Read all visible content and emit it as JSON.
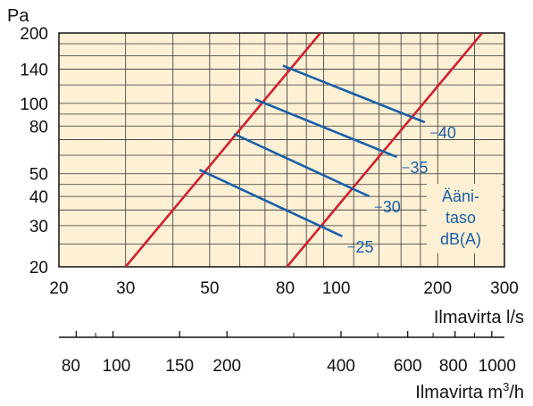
{
  "chart_data": {
    "type": "line",
    "y_unit": "Pa",
    "x_title": "Ilmavirta l/s",
    "x2_title_main": "Ilmavirta m",
    "x2_title_sup": "3",
    "x2_title_end": "/h",
    "x_scale": "log",
    "y_scale": "log",
    "xlim": [
      20,
      300
    ],
    "ylim": [
      20,
      200
    ],
    "x2lim": [
      72,
      1080
    ],
    "grid": true,
    "background": "#fdf0d5",
    "x_ticks": [
      {
        "v": 20,
        "label": "20"
      },
      {
        "v": 30,
        "label": "30"
      },
      {
        "v": 50,
        "label": "50"
      },
      {
        "v": 80,
        "label": "80"
      },
      {
        "v": 100,
        "label": "100"
      },
      {
        "v": 200,
        "label": "200"
      },
      {
        "v": 300,
        "label": "300"
      }
    ],
    "y_ticks": [
      {
        "v": 20,
        "label": "20"
      },
      {
        "v": 30,
        "label": "30"
      },
      {
        "v": 40,
        "label": "40"
      },
      {
        "v": 50,
        "label": "50"
      },
      {
        "v": 80,
        "label": "80"
      },
      {
        "v": 100,
        "label": "100"
      },
      {
        "v": 140,
        "label": "140"
      },
      {
        "v": 200,
        "label": "200"
      }
    ],
    "x2_ticks": [
      {
        "v": 80,
        "label": "80"
      },
      {
        "v": 100,
        "label": "100"
      },
      {
        "v": 150,
        "label": "150"
      },
      {
        "v": 200,
        "label": "200"
      },
      {
        "v": 400,
        "label": "400"
      },
      {
        "v": 600,
        "label": "600"
      },
      {
        "v": 800,
        "label": "800"
      },
      {
        "v": 1000,
        "label": "1000"
      }
    ],
    "x2_minor": [
      90,
      300,
      500,
      700,
      900
    ],
    "limit_lines": [
      {
        "color": "#d0202e",
        "points": [
          [
            30,
            20
          ],
          [
            98,
            200
          ]
        ]
      },
      {
        "color": "#d0202e",
        "points": [
          [
            80,
            20
          ],
          [
            262,
            200
          ]
        ]
      }
    ],
    "sound_lines": [
      {
        "label": "25",
        "color": "#1a5fa8",
        "points": [
          [
            47,
            52
          ],
          [
            112,
            27
          ]
        ]
      },
      {
        "label": "30",
        "color": "#1a5fa8",
        "points": [
          [
            58,
            74
          ],
          [
            132,
            40
          ]
        ]
      },
      {
        "label": "35",
        "color": "#1a5fa8",
        "points": [
          [
            66,
            104
          ],
          [
            156,
            59
          ]
        ]
      },
      {
        "label": "40",
        "color": "#1a5fa8",
        "points": [
          [
            78,
            145
          ],
          [
            185,
            83
          ]
        ]
      }
    ],
    "legend": [
      "Ääni-",
      "taso",
      "dB(A)"
    ]
  }
}
